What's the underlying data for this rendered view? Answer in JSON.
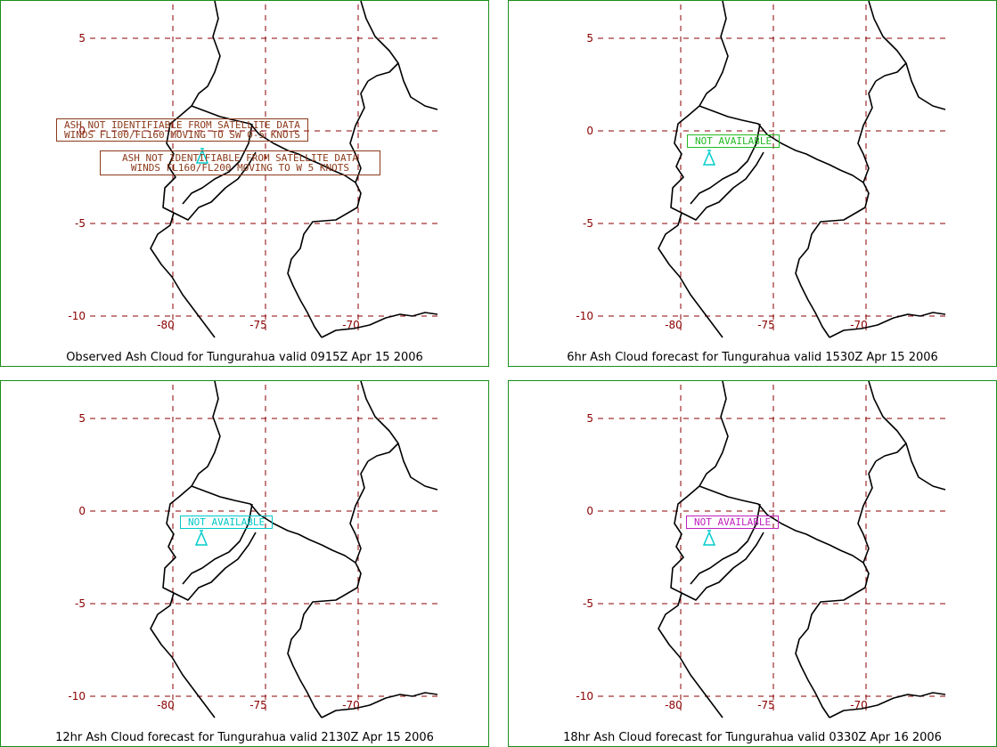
{
  "panels": [
    {
      "caption": "Observed Ash Cloud for Tungurahua valid 0915Z Apr 15 2006",
      "notes": [
        {
          "lines": [
            "ASH NOT IDENTIFIABLE FROM SATELLITE DATA",
            "WINDS FL100/FL160 MOVING TO SW 0-5 KNOTS"
          ],
          "color": "#8b3a1a"
        },
        {
          "lines": [
            "ASH NOT IDENTIFIABLE FROM SATELLITE DATA",
            "WINDS FL160/FL200 MOVING TO W 5 KNOTS"
          ],
          "color": "#8b3a1a"
        }
      ],
      "volcano_color": "#00cccc"
    },
    {
      "caption": "6hr Ash Cloud forecast for Tungurahua valid 1530Z Apr 15 2006",
      "notes": [
        {
          "lines": [
            "NOT AVAILABLE"
          ],
          "color": "#22bb22"
        }
      ],
      "volcano_color": "#00cccc"
    },
    {
      "caption": "12hr Ash Cloud forecast for Tungurahua valid 2130Z Apr 15 2006",
      "notes": [
        {
          "lines": [
            "NOT AVAILABLE"
          ],
          "color": "#00c8c8"
        }
      ],
      "volcano_color": "#00cccc"
    },
    {
      "caption": "18hr Ash Cloud forecast for Tungurahua valid 0330Z Apr 16 2006",
      "notes": [
        {
          "lines": [
            "NOT AVAILABLE"
          ],
          "color": "#c020c0"
        }
      ],
      "volcano_color": "#00cccc"
    }
  ],
  "lat_labels": [
    "5",
    "0",
    "-5",
    "-10"
  ],
  "lon_labels": [
    "-80",
    "-75",
    "-70"
  ],
  "colors": {
    "grid": "#8b0000",
    "frame": "#1a8f1a",
    "coast": "#000000"
  }
}
